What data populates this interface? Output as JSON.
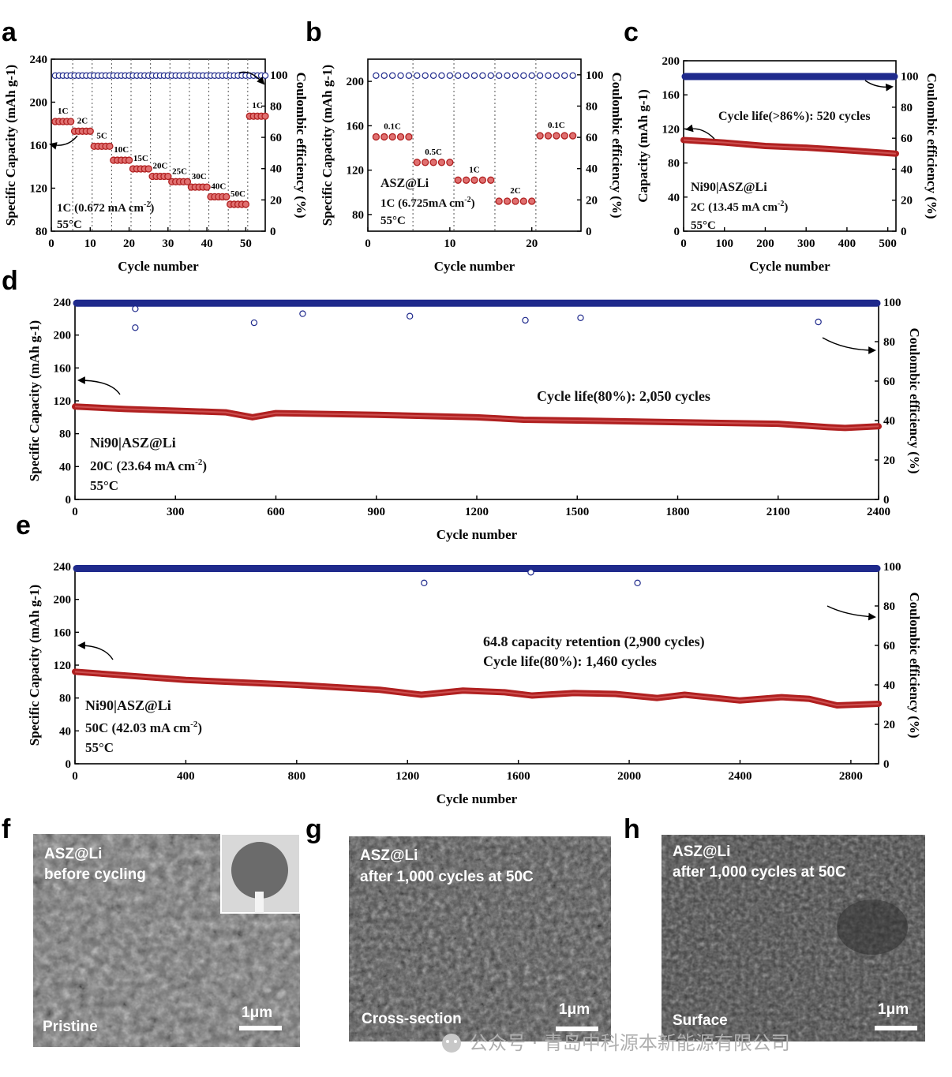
{
  "panel_labels": [
    "a",
    "b",
    "c",
    "d",
    "e",
    "f",
    "g",
    "h"
  ],
  "chart_data": [
    {
      "id": "a",
      "type": "scatter",
      "xlabel": "Cycle number",
      "ylabel_left": "Specific Capacity (mAh g-1)",
      "ylabel_right": "Coulombic efficiency (%)",
      "xlim": [
        0,
        55
      ],
      "ylim_left": [
        80,
        240
      ],
      "ylim_right": [
        0,
        110
      ],
      "xticks": [
        0,
        10,
        20,
        30,
        40,
        50
      ],
      "yticks_left": [
        80,
        120,
        160,
        200,
        240
      ],
      "yticks_right": [
        0,
        20,
        40,
        60,
        80,
        100
      ],
      "rate_steps": [
        {
          "label": "1C",
          "start": 1,
          "end": 5,
          "capacity": 182
        },
        {
          "label": "2C",
          "start": 6,
          "end": 10,
          "capacity": 173
        },
        {
          "label": "5C",
          "start": 11,
          "end": 15,
          "capacity": 159
        },
        {
          "label": "10C",
          "start": 16,
          "end": 20,
          "capacity": 146
        },
        {
          "label": "15C",
          "start": 21,
          "end": 25,
          "capacity": 138
        },
        {
          "label": "20C",
          "start": 26,
          "end": 30,
          "capacity": 131
        },
        {
          "label": "25C",
          "start": 31,
          "end": 35,
          "capacity": 126
        },
        {
          "label": "30C",
          "start": 36,
          "end": 40,
          "capacity": 121
        },
        {
          "label": "40C",
          "start": 41,
          "end": 45,
          "capacity": 112
        },
        {
          "label": "50C",
          "start": 46,
          "end": 50,
          "capacity": 105
        },
        {
          "label": "1C",
          "start": 51,
          "end": 55,
          "capacity": 187
        }
      ],
      "coulombic_efficiency": 99.5,
      "annotations": [
        "1C (0.672 mA cm",
        "-2",
        ")",
        "55°C"
      ]
    },
    {
      "id": "b",
      "type": "scatter",
      "xlabel": "Cycle number",
      "ylabel_left": "Specific Capacity (mAh g-1)",
      "ylabel_right": "Coulombic efficiency (%)",
      "xlim": [
        0,
        26
      ],
      "ylim_left": [
        65,
        220
      ],
      "ylim_right": [
        0,
        110
      ],
      "xticks": [
        0,
        10,
        20
      ],
      "yticks_left": [
        80,
        120,
        160,
        200
      ],
      "yticks_right": [
        0,
        20,
        40,
        60,
        80,
        100
      ],
      "rate_steps": [
        {
          "label": "0.1C",
          "start": 1,
          "end": 5,
          "capacity": 150
        },
        {
          "label": "0.5C",
          "start": 6,
          "end": 10,
          "capacity": 127
        },
        {
          "label": "1C",
          "start": 11,
          "end": 15,
          "capacity": 111
        },
        {
          "label": "2C",
          "start": 16,
          "end": 20,
          "capacity": 92
        },
        {
          "label": "0.1C",
          "start": 21,
          "end": 25,
          "capacity": 151
        }
      ],
      "coulombic_efficiency": 99.5,
      "annotations": [
        "ASZ@Li",
        "1C (6.725mA cm",
        "-2",
        ")",
        "55°C"
      ]
    },
    {
      "id": "c",
      "type": "line",
      "xlabel": "Cycle number",
      "ylabel_left": "Capacity (mAh g-1)",
      "ylabel_right": "Coulombic efficiency (%)",
      "xlim": [
        0,
        520
      ],
      "ylim_left": [
        0,
        200
      ],
      "ylim_right": [
        0,
        110
      ],
      "xticks": [
        0,
        100,
        200,
        300,
        400,
        500
      ],
      "yticks_left": [
        0,
        40,
        80,
        120,
        160,
        200
      ],
      "yticks_right": [
        0,
        20,
        40,
        60,
        80,
        100
      ],
      "capacity": {
        "x": [
          0,
          100,
          200,
          300,
          400,
          520
        ],
        "y": [
          107,
          104,
          100,
          98,
          95,
          91
        ]
      },
      "coulombic_efficiency": 99.8,
      "annotations": [
        "Cycle life(>86%): 520 cycles",
        "Ni90|ASZ@Li",
        "2C (13.45 mA cm",
        "-2",
        ")",
        "55°C"
      ]
    },
    {
      "id": "d",
      "type": "line",
      "xlabel": "Cycle number",
      "ylabel_left": "Specific Capacity (mAh g-1)",
      "ylabel_right": "Coulombic efficiency (%)",
      "xlim": [
        0,
        2400
      ],
      "ylim_left": [
        0,
        240
      ],
      "ylim_right": [
        0,
        100
      ],
      "xticks": [
        0,
        300,
        600,
        900,
        1200,
        1500,
        1800,
        2100,
        2400
      ],
      "yticks_left": [
        0,
        40,
        80,
        120,
        160,
        200,
        240
      ],
      "yticks_right": [
        0,
        20,
        40,
        60,
        80,
        100
      ],
      "capacity": {
        "x": [
          0,
          150,
          300,
          450,
          530,
          600,
          900,
          1200,
          1340,
          1500,
          1800,
          2100,
          2250,
          2300,
          2400
        ],
        "y": [
          113,
          110,
          108,
          106,
          100,
          105,
          103,
          100,
          97,
          96,
          94,
          92,
          88,
          87,
          89
        ]
      },
      "coulombic_efficiency": 99.5,
      "annotations": [
        "Cycle life(80%): 2,050 cycles",
        "Ni90|ASZ@Li",
        "20C (23.64 mA cm",
        "-2",
        ")",
        "55°C"
      ]
    },
    {
      "id": "e",
      "type": "line",
      "xlabel": "Cycle number",
      "ylabel_left": "Specific Capacity (mAh g-1)",
      "ylabel_right": "Coulombic efficiency (%)",
      "xlim": [
        0,
        2900
      ],
      "ylim_left": [
        0,
        240
      ],
      "ylim_right": [
        0,
        100
      ],
      "xticks": [
        0,
        400,
        800,
        1200,
        1600,
        2000,
        2400,
        2800
      ],
      "yticks_left": [
        0,
        40,
        80,
        120,
        160,
        200,
        240
      ],
      "yticks_right": [
        0,
        20,
        40,
        60,
        80,
        100
      ],
      "capacity": {
        "x": [
          0,
          400,
          800,
          1100,
          1250,
          1400,
          1550,
          1650,
          1800,
          1950,
          2100,
          2200,
          2400,
          2550,
          2650,
          2750,
          2900
        ],
        "y": [
          112,
          102,
          96,
          90,
          84,
          89,
          87,
          83,
          86,
          85,
          80,
          84,
          77,
          81,
          79,
          71,
          73
        ]
      },
      "coulombic_efficiency": 99.0,
      "annotations": [
        "64.8 capacity retention (2,900 cycles)",
        "Cycle life(80%): 1,460 cycles",
        "Ni90|ASZ@Li",
        "50C (42.03 mA cm",
        "-2",
        ")",
        "55°C"
      ]
    }
  ],
  "sem_images": [
    {
      "id": "f",
      "title1": "ASZ@Li",
      "title2": "before cycling",
      "bottom": "Pristine",
      "scale": "1μm"
    },
    {
      "id": "g",
      "title1": "ASZ@Li",
      "title2": "after 1,000 cycles at 50C",
      "bottom": "Cross-section",
      "scale": "1μm"
    },
    {
      "id": "h",
      "title1": "ASZ@Li",
      "title2": "after 1,000 cycles at 50C",
      "bottom": "Surface",
      "scale": "1μm"
    }
  ],
  "watermark": "公众号 · 青岛中科源本新能源有限公司",
  "colors": {
    "capacity": "#b02020",
    "capacity_fill": "#e07070",
    "efficiency": "#1f2a8c"
  }
}
